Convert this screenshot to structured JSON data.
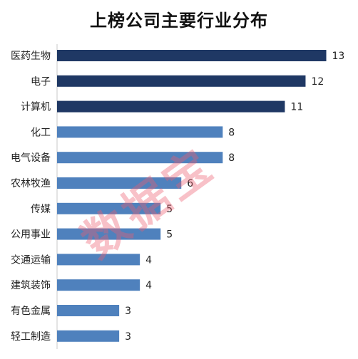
{
  "chart_data": {
    "type": "bar",
    "orientation": "horizontal",
    "title": "上榜公司主要行业分布",
    "categories": [
      "医药生物",
      "电子",
      "计算机",
      "化工",
      "电气设备",
      "农林牧渔",
      "传媒",
      "公用事业",
      "交通运输",
      "建筑装饰",
      "有色金属",
      "轻工制造"
    ],
    "values": [
      13,
      12,
      11,
      8,
      8,
      6,
      5,
      5,
      4,
      4,
      3,
      3
    ],
    "highlight_count": 3,
    "colors": {
      "highlight": "#1f3864",
      "normal": "#4f81bd"
    },
    "xlim": [
      0,
      13
    ],
    "grid": false,
    "legend": "none"
  },
  "watermark": "数据宝"
}
